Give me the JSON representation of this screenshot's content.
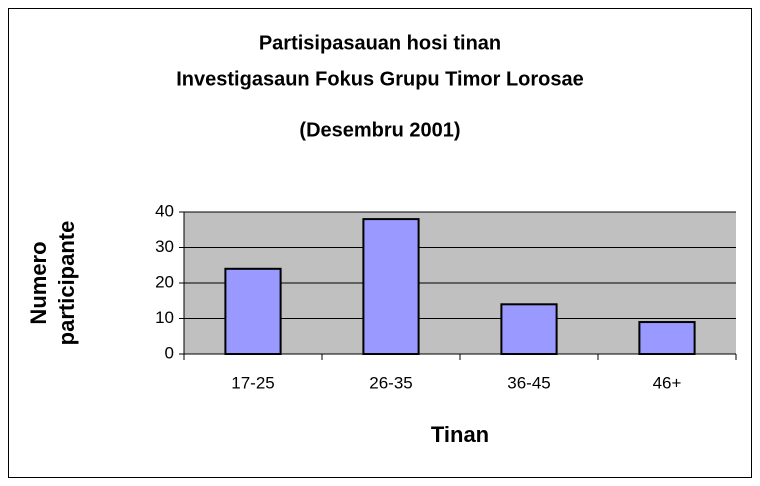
{
  "chart_data": {
    "type": "bar",
    "title": [
      "Partisipasauan hosi tinan",
      "Investigasaun Fokus Grupu Timor Lorosae"
    ],
    "subtitle": "(Desembru 2001)",
    "x_label": "Tinan",
    "y_label": [
      "Numero",
      "participante"
    ],
    "categories": [
      "17-25",
      "26-35",
      "36-45",
      "46+"
    ],
    "values": [
      24,
      38,
      14,
      9
    ],
    "color": "#9999ff",
    "ylim": [
      0,
      40
    ],
    "yticks": [
      0,
      10,
      20,
      30,
      40
    ],
    "grid": true
  }
}
